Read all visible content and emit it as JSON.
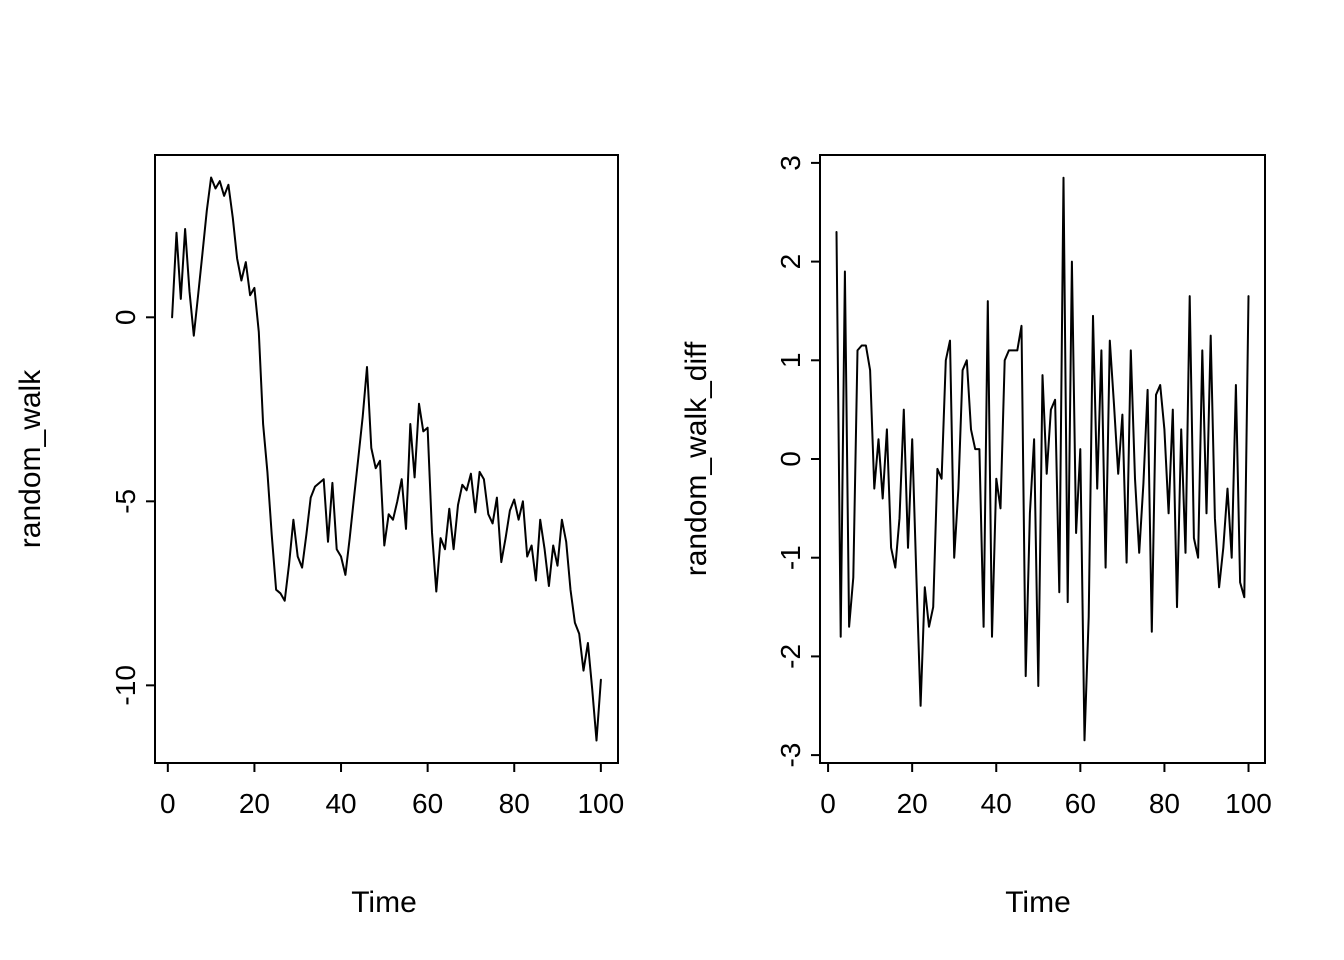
{
  "figure": {
    "background_color": "#ffffff",
    "line_color": "#000000",
    "n_panels": 2
  },
  "chart_data": [
    {
      "type": "line",
      "title": "",
      "xlabel": "Time",
      "ylabel": "random_walk",
      "time_start": 1,
      "values": [
        0,
        2.3,
        0.5,
        2.4,
        0.7,
        -0.5,
        0.6,
        1.75,
        2.9,
        3.8,
        3.5,
        3.7,
        3.3,
        3.6,
        2.7,
        1.6,
        1.0,
        1.5,
        0.6,
        0.8,
        -0.4,
        -2.9,
        -4.2,
        -5.9,
        -7.4,
        -7.5,
        -7.7,
        -6.7,
        -5.5,
        -6.5,
        -6.8,
        -5.9,
        -4.9,
        -4.6,
        -4.5,
        -4.4,
        -6.1,
        -4.5,
        -6.3,
        -6.5,
        -7.0,
        -6.0,
        -4.9,
        -3.8,
        -2.7,
        -1.35,
        -3.55,
        -4.1,
        -3.9,
        -6.2,
        -5.35,
        -5.5,
        -5.0,
        -4.4,
        -5.75,
        -2.9,
        -4.35,
        -2.35,
        -3.1,
        -3.0,
        -5.85,
        -7.45,
        -6.0,
        -6.3,
        -5.2,
        -6.3,
        -5.1,
        -4.55,
        -4.7,
        -4.25,
        -5.3,
        -4.2,
        -4.4,
        -5.35,
        -5.6,
        -4.9,
        -6.65,
        -6.0,
        -5.25,
        -4.95,
        -5.5,
        -5.0,
        -6.5,
        -6.2,
        -7.15,
        -5.5,
        -6.3,
        -7.3,
        -6.2,
        -6.75,
        -5.5,
        -6.1,
        -7.4,
        -8.3,
        -8.6,
        -9.6,
        -8.85,
        -10.1,
        -11.5,
        -9.85
      ],
      "xlim": [
        -2.96,
        103.96
      ],
      "ylim": [
        -12.11,
        4.41
      ],
      "xticks": [
        0,
        20,
        40,
        60,
        80,
        100
      ],
      "yticks": [
        0,
        -5,
        -10
      ],
      "grid": false,
      "legend": false,
      "line_color": "#000000"
    },
    {
      "type": "line",
      "title": "",
      "xlabel": "Time",
      "ylabel": "random_walk_diff",
      "time_start": 2,
      "values": [
        2.3,
        -1.8,
        1.9,
        -1.7,
        -1.2,
        1.1,
        1.15,
        1.15,
        0.9,
        -0.3,
        0.2,
        -0.4,
        0.3,
        -0.9,
        -1.1,
        -0.6,
        0.5,
        -0.9,
        0.2,
        -1.2,
        -2.5,
        -1.3,
        -1.7,
        -1.5,
        -0.1,
        -0.2,
        1.0,
        1.2,
        -1.0,
        -0.3,
        0.9,
        1.0,
        0.3,
        0.1,
        0.1,
        -1.7,
        1.6,
        -1.8,
        -0.2,
        -0.5,
        1.0,
        1.1,
        1.1,
        1.1,
        1.35,
        -2.2,
        -0.55,
        0.2,
        -2.3,
        0.85,
        -0.15,
        0.5,
        0.6,
        -1.35,
        2.85,
        -1.45,
        2.0,
        -0.75,
        0.1,
        -2.85,
        -1.6,
        1.45,
        -0.3,
        1.1,
        -1.1,
        1.2,
        0.55,
        -0.15,
        0.45,
        -1.05,
        1.1,
        -0.2,
        -0.95,
        -0.25,
        0.7,
        -1.75,
        0.65,
        0.75,
        0.3,
        -0.55,
        0.5,
        -1.5,
        0.3,
        -0.95,
        1.65,
        -0.8,
        -1.0,
        1.1,
        -0.55,
        1.25,
        -0.6,
        -1.3,
        -0.9,
        -0.3,
        -1.0,
        0.75,
        -1.25,
        -1.4,
        1.65
      ],
      "xlim": [
        -1.92,
        103.92
      ],
      "ylim": [
        -3.08,
        3.08
      ],
      "xticks": [
        0,
        20,
        40,
        60,
        80,
        100
      ],
      "yticks": [
        3,
        2,
        1,
        0,
        -1,
        -2,
        -3
      ],
      "grid": false,
      "legend": false,
      "line_color": "#000000"
    }
  ]
}
